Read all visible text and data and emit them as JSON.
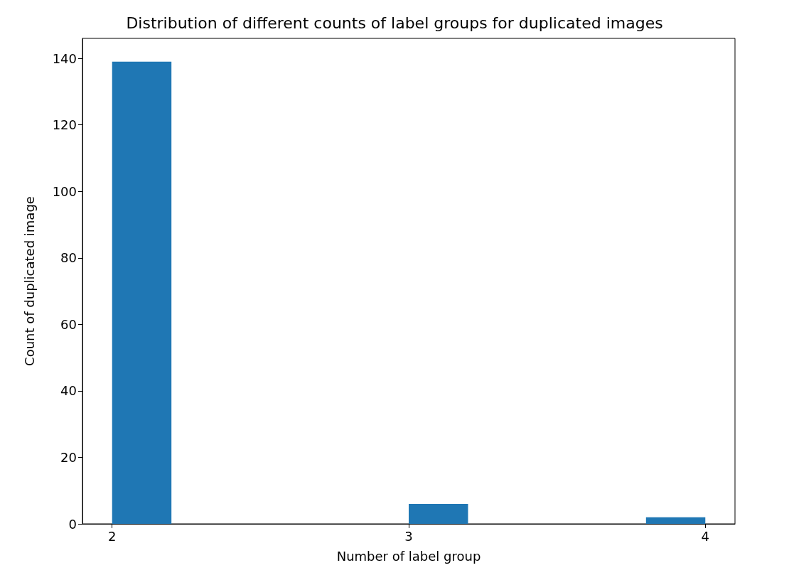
{
  "chart_data": {
    "type": "histogram",
    "title": "Distribution of different counts of label groups for duplicated images",
    "xlabel": "Number of label group",
    "ylabel": "Count of duplicated image",
    "bins": [
      2,
      2.2,
      2.4,
      2.6,
      2.8,
      3,
      3.2,
      3.4,
      3.6,
      3.8,
      4
    ],
    "values": [
      139,
      0,
      0,
      0,
      0,
      6,
      0,
      0,
      0,
      2
    ],
    "color": "#1f77b4",
    "xlim": [
      1.9,
      4.1
    ],
    "xticks": [
      2,
      3,
      4
    ],
    "ylim": [
      0,
      146
    ],
    "yticks": [
      0,
      20,
      40,
      60,
      80,
      100,
      120,
      140
    ],
    "grid": false
  }
}
